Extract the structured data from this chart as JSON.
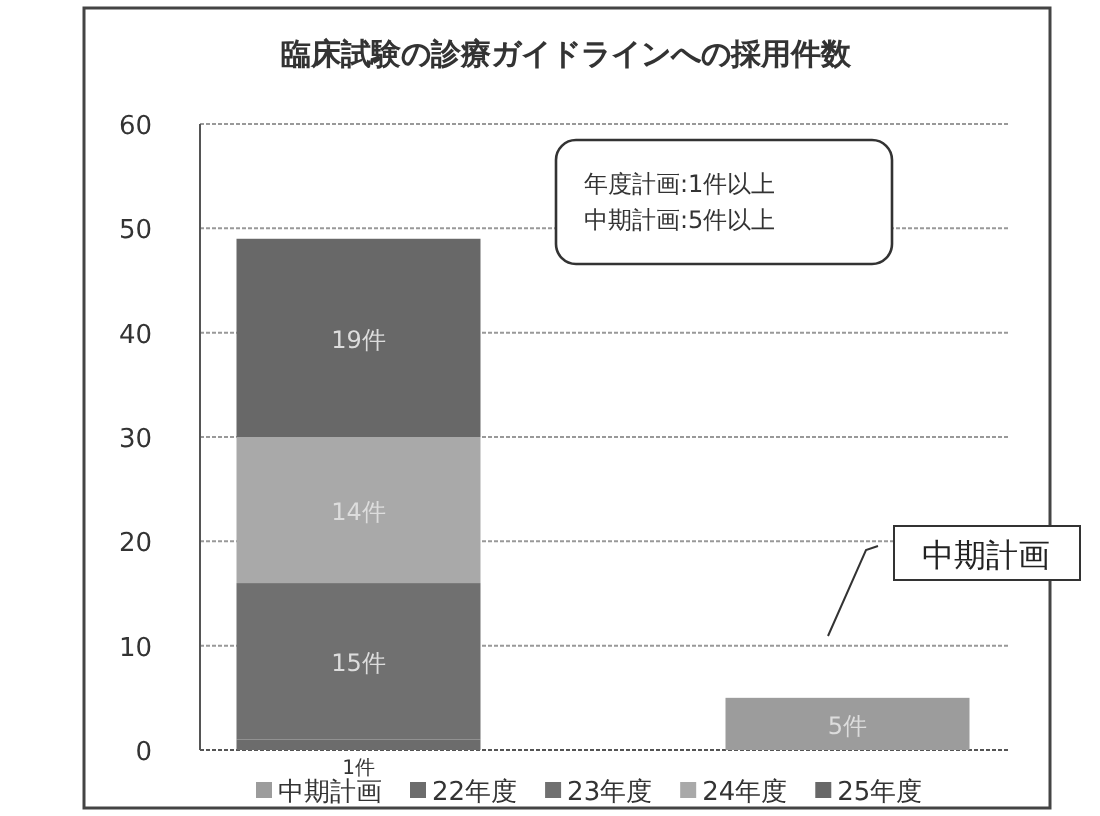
{
  "chart_data": {
    "type": "bar",
    "title": "臨床試験の診療ガイドラインへの採用件数",
    "stacked": true,
    "categories": [
      null,
      null
    ],
    "series": [
      {
        "name": "中期計画",
        "color": "#9c9c9c",
        "values": [
          null,
          5
        ],
        "value_labels": [
          null,
          "5件"
        ]
      },
      {
        "name": "22年度",
        "color": "#6c6c6c",
        "values": [
          1,
          null
        ],
        "value_labels": [
          "1件",
          null
        ]
      },
      {
        "name": "23年度",
        "color": "#707070",
        "values": [
          15,
          null
        ],
        "value_labels": [
          "15件",
          null
        ]
      },
      {
        "name": "24年度",
        "color": "#a9a9a9",
        "values": [
          14,
          null
        ],
        "value_labels": [
          "14件",
          null
        ]
      },
      {
        "name": "25年度",
        "color": "#686868",
        "values": [
          19,
          null
        ],
        "value_labels": [
          "19件",
          null
        ]
      }
    ],
    "ylim": [
      0,
      60
    ],
    "yticks": [
      0,
      10,
      20,
      30,
      40,
      50,
      60
    ],
    "grid": "y",
    "legend": "bottom",
    "annotations": [
      "年度計画:1件以上",
      "中期計画:5件以上",
      "中期計画"
    ]
  }
}
